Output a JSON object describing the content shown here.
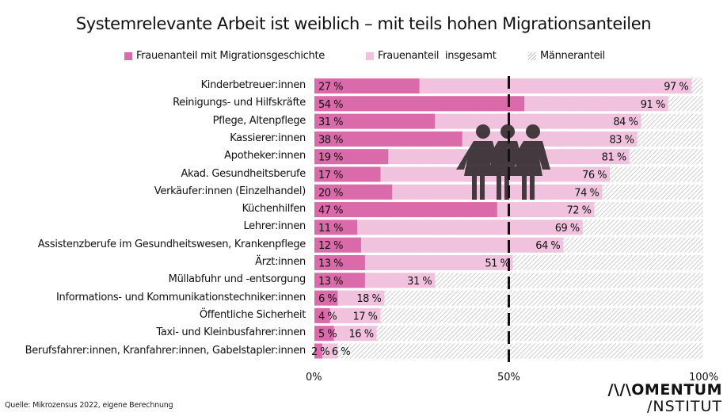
{
  "title": "Systemrelevante Arbeit ist weiblich – mit teils hohen Migrationsanteilen",
  "legend": [
    {
      "label": "Frauenanteil mit Migrationsgeschichte",
      "key": "mig"
    },
    {
      "label": "Frauenanteil  insgesamt",
      "key": "tot"
    },
    {
      "label": "Männeranteil",
      "key": "men"
    }
  ],
  "colors": {
    "migration": "#db6aab",
    "women_total": "#f0c2dd",
    "men_hatch": "#bdbdbd",
    "reference_line": "#111111",
    "icon": "#3a3236"
  },
  "chart_data": {
    "type": "bar",
    "orientation": "horizontal",
    "stacked": "overlay",
    "title": "Systemrelevante Arbeit ist weiblich – mit teils hohen Migrationsanteilen",
    "xlabel": "",
    "ylabel": "",
    "xlim": [
      0,
      100
    ],
    "x_ticks": [
      "0%",
      "50%",
      "100%"
    ],
    "reference_line": {
      "value": 50,
      "style": "dashed"
    },
    "legend_position": "top",
    "categories": [
      "Kinderbetreuer:innen",
      "Reinigungs- und Hilfskräfte",
      "Pflege, Altenpflege",
      "Kassierer:innen",
      "Apotheker:innen",
      "Akad. Gesundheitsberufe",
      "Verkäufer:innen (Einzelhandel)",
      "Küchenhilfen",
      "Lehrer:innen",
      "Assistenzberufe im Gesundheitswesen, Krankenpflege",
      "Ärzt:innen",
      "Müllabfuhr und -entsorgung",
      "Informations- und Kommunikationstechniker:innen",
      "Öffentliche Sicherheit",
      "Taxi- und Kleinbusfahrer:innen",
      "Berufsfahrer:innen, Kranfahrer:innen, Gabelstapler:innen"
    ],
    "series": [
      {
        "name": "Frauenanteil mit Migrationsgeschichte",
        "values": [
          27,
          54,
          31,
          38,
          19,
          17,
          20,
          47,
          11,
          12,
          13,
          13,
          6,
          4,
          5,
          2
        ]
      },
      {
        "name": "Frauenanteil insgesamt",
        "values": [
          97,
          91,
          84,
          83,
          81,
          76,
          74,
          72,
          69,
          64,
          51,
          31,
          18,
          17,
          16,
          6
        ]
      },
      {
        "name": "Männeranteil",
        "values": [
          3,
          9,
          16,
          17,
          19,
          24,
          26,
          28,
          31,
          36,
          49,
          69,
          82,
          83,
          84,
          94
        ]
      }
    ],
    "value_labels_suffix": " %"
  },
  "axis": {
    "tick_0": "0%",
    "tick_50": "50%",
    "tick_100": "100%"
  },
  "source": "Quelle: Mikrozensus 2022, eigene Berechnung",
  "logo": {
    "line1": "/\\/\\OMENTUM",
    "line2": "/NSTITUT"
  },
  "icon": "three-women-icon"
}
